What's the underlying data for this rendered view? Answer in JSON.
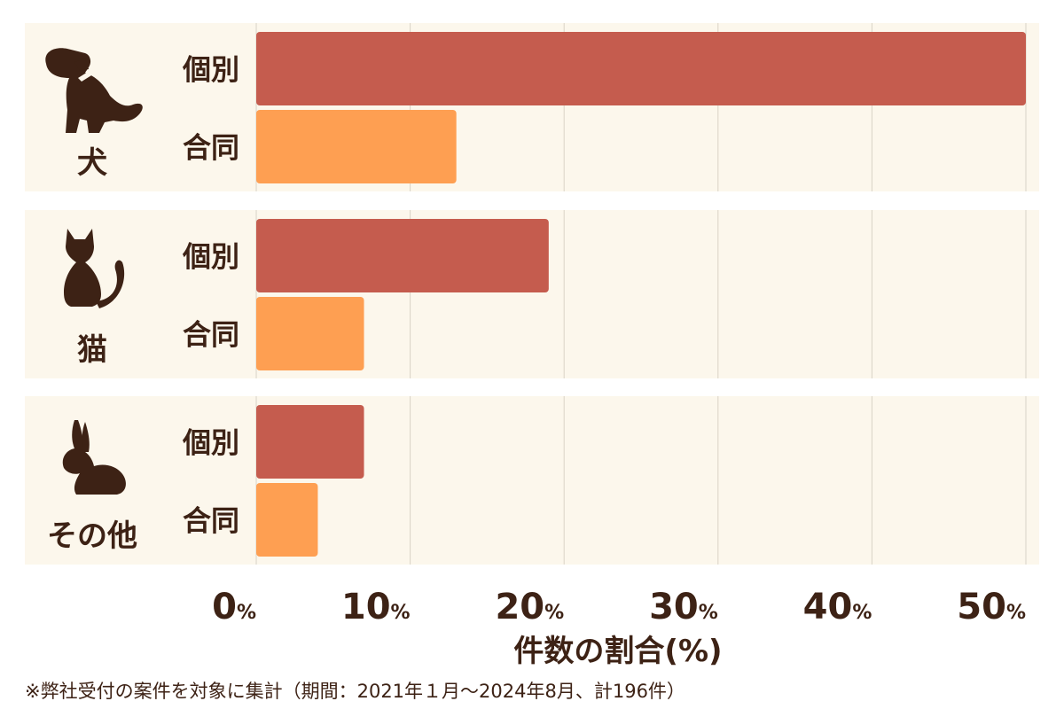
{
  "colors": {
    "panel_bg": "#fcf7ec",
    "individual": "#c55c4e",
    "group": "#fe9f52",
    "text": "#3d2215",
    "grid": "#d9d3c7"
  },
  "chart_data": {
    "type": "bar",
    "orientation": "horizontal",
    "groups": [
      {
        "label": "犬",
        "icon": "dog-icon"
      },
      {
        "label": "猫",
        "icon": "cat-icon"
      },
      {
        "label": "その他",
        "icon": "rabbit-icon"
      }
    ],
    "series": [
      {
        "name": "個別",
        "color": "#c55c4e",
        "values": [
          50,
          19,
          7
        ]
      },
      {
        "name": "合同",
        "color": "#fe9f52",
        "values": [
          13,
          7,
          4
        ]
      }
    ],
    "xlim": [
      0,
      50
    ],
    "xticks": [
      0,
      10,
      20,
      30,
      40,
      50
    ],
    "tick_unit": "%",
    "xlabel": "件数の割合(%)",
    "grid": true
  },
  "footnote": "※弊社受付の案件を対象に集計（期間：2021年１月〜2024年8月、計196件）"
}
